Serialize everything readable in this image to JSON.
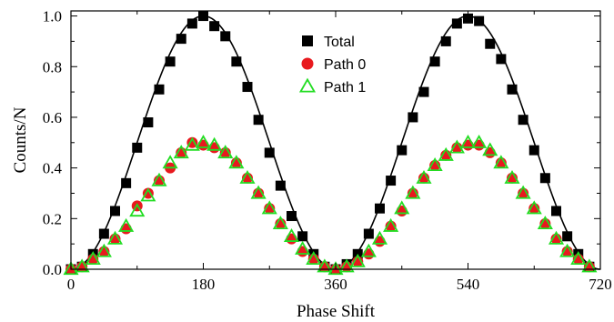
{
  "chart_data": {
    "type": "scatter",
    "xlabel": "Phase Shift",
    "ylabel": "Counts/N",
    "xlim": [
      0,
      720
    ],
    "ylim": [
      0,
      1.02
    ],
    "xticks": [
      0,
      180,
      360,
      540,
      720
    ],
    "yticks": [
      0.0,
      0.2,
      0.4,
      0.6,
      0.8,
      1.0
    ],
    "legend_position": "upper-center",
    "grid": false,
    "series": [
      {
        "name": "Total",
        "marker": "square",
        "color": "#000000",
        "x": [
          0,
          15,
          30,
          45,
          60,
          75,
          90,
          105,
          120,
          135,
          150,
          165,
          180,
          195,
          210,
          225,
          240,
          255,
          270,
          285,
          300,
          315,
          330,
          345,
          360,
          375,
          390,
          405,
          420,
          435,
          450,
          465,
          480,
          495,
          510,
          525,
          540,
          555,
          570,
          585,
          600,
          615,
          630,
          645,
          660,
          675,
          690,
          705
        ],
        "y": [
          0.0,
          0.01,
          0.06,
          0.14,
          0.23,
          0.34,
          0.48,
          0.58,
          0.71,
          0.82,
          0.91,
          0.97,
          1.0,
          0.96,
          0.92,
          0.82,
          0.72,
          0.59,
          0.46,
          0.33,
          0.21,
          0.13,
          0.06,
          0.01,
          0.0,
          0.02,
          0.06,
          0.14,
          0.24,
          0.35,
          0.47,
          0.6,
          0.7,
          0.82,
          0.9,
          0.97,
          0.99,
          0.98,
          0.89,
          0.83,
          0.71,
          0.59,
          0.47,
          0.36,
          0.23,
          0.13,
          0.06,
          0.01
        ]
      },
      {
        "name": "Path 0",
        "marker": "circle",
        "color": "#e8191e",
        "x": [
          0,
          15,
          30,
          45,
          60,
          75,
          90,
          105,
          120,
          135,
          150,
          165,
          180,
          195,
          210,
          225,
          240,
          255,
          270,
          285,
          300,
          315,
          330,
          345,
          360,
          375,
          390,
          405,
          420,
          435,
          450,
          465,
          480,
          495,
          510,
          525,
          540,
          555,
          570,
          585,
          600,
          615,
          630,
          645,
          660,
          675,
          690,
          705
        ],
        "y": [
          0.0,
          0.01,
          0.04,
          0.07,
          0.12,
          0.16,
          0.25,
          0.3,
          0.35,
          0.4,
          0.46,
          0.5,
          0.49,
          0.48,
          0.46,
          0.42,
          0.36,
          0.3,
          0.24,
          0.18,
          0.12,
          0.07,
          0.04,
          0.01,
          0.0,
          0.01,
          0.03,
          0.06,
          0.11,
          0.17,
          0.23,
          0.3,
          0.36,
          0.41,
          0.45,
          0.48,
          0.49,
          0.49,
          0.46,
          0.42,
          0.36,
          0.3,
          0.24,
          0.18,
          0.12,
          0.07,
          0.04,
          0.01
        ]
      },
      {
        "name": "Path 1",
        "marker": "triangle-open",
        "color": "#22dd22",
        "x": [
          0,
          15,
          30,
          45,
          60,
          75,
          90,
          105,
          120,
          135,
          150,
          165,
          180,
          195,
          210,
          225,
          240,
          255,
          270,
          285,
          300,
          315,
          330,
          345,
          360,
          375,
          390,
          405,
          420,
          435,
          450,
          465,
          480,
          495,
          510,
          525,
          540,
          555,
          570,
          585,
          600,
          615,
          630,
          645,
          660,
          675,
          690,
          705
        ],
        "y": [
          0.0,
          0.01,
          0.04,
          0.07,
          0.12,
          0.17,
          0.23,
          0.29,
          0.35,
          0.42,
          0.46,
          0.49,
          0.5,
          0.49,
          0.46,
          0.42,
          0.36,
          0.3,
          0.24,
          0.18,
          0.13,
          0.08,
          0.04,
          0.01,
          0.0,
          0.01,
          0.03,
          0.07,
          0.12,
          0.17,
          0.24,
          0.3,
          0.36,
          0.41,
          0.45,
          0.48,
          0.5,
          0.5,
          0.47,
          0.42,
          0.36,
          0.3,
          0.24,
          0.18,
          0.12,
          0.07,
          0.04,
          0.01
        ]
      }
    ],
    "fit_curve": {
      "description_for_render_only": false,
      "amplitude": 1.0,
      "color": "#000000"
    }
  }
}
